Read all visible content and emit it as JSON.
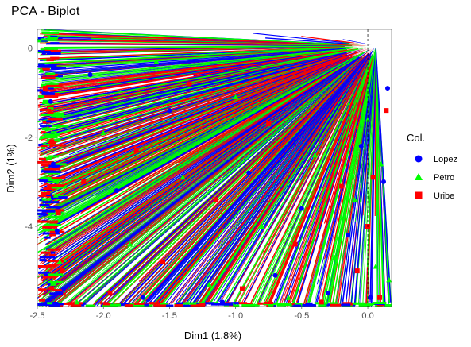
{
  "chart_data": {
    "type": "scatter",
    "title": "PCA - Biplot",
    "xlabel": "Dim1 (1.8%)",
    "ylabel": "Dim2 (1%)",
    "xlim": [
      -2.5,
      0.18
    ],
    "ylim": [
      -5.8,
      0.42
    ],
    "x_ticks": [
      -2.5,
      -2.0,
      -1.5,
      -1.0,
      -0.5,
      0.0
    ],
    "x_tick_labels": [
      "-2.5",
      "-2.0",
      "-1.5",
      "-1.0",
      "-0.5",
      "0.0"
    ],
    "y_ticks": [
      0,
      -2,
      -4
    ],
    "y_tick_labels": [
      "0",
      "-2",
      "-4"
    ],
    "grid": false,
    "origin_lines": true,
    "legend": {
      "title": "Col.",
      "placement": "right",
      "entries": [
        {
          "name": "Lopez",
          "color": "#0000ff",
          "shape": "circle"
        },
        {
          "name": "Petro",
          "color": "#00ff00",
          "shape": "triangle"
        },
        {
          "name": "Uribe",
          "color": "#ff0000",
          "shape": "square"
        }
      ]
    },
    "series": [
      {
        "name": "Lopez",
        "color": "#0000ff",
        "shape": "circle",
        "points": [
          [
            -2.45,
            -0.1
          ],
          [
            -2.4,
            -1.2
          ],
          [
            -2.38,
            -2.6
          ],
          [
            -2.35,
            -4.1
          ],
          [
            -2.3,
            -5.4
          ],
          [
            -2.1,
            -0.6
          ],
          [
            -1.9,
            -3.2
          ],
          [
            -1.7,
            -5.6
          ],
          [
            -1.5,
            -1.4
          ],
          [
            -1.3,
            -4.5
          ],
          [
            -1.1,
            -5.7
          ],
          [
            -0.9,
            -2.8
          ],
          [
            -0.7,
            -5.1
          ],
          [
            -0.5,
            -3.6
          ],
          [
            -0.3,
            -5.5
          ],
          [
            -0.15,
            -4.2
          ],
          [
            -0.05,
            -2.2
          ],
          [
            0.02,
            -5.6
          ],
          [
            0.12,
            -3.0
          ],
          [
            0.15,
            -0.9
          ]
        ]
      },
      {
        "name": "Petro",
        "color": "#00ff00",
        "shape": "triangle",
        "points": [
          [
            -2.47,
            -0.5
          ],
          [
            -2.42,
            -1.8
          ],
          [
            -2.36,
            -3.3
          ],
          [
            -2.33,
            -4.8
          ],
          [
            -2.2,
            -5.7
          ],
          [
            -2.0,
            -1.9
          ],
          [
            -1.8,
            -4.4
          ],
          [
            -1.6,
            -0.3
          ],
          [
            -1.4,
            -2.9
          ],
          [
            -1.2,
            -5.3
          ],
          [
            -1.0,
            -1.1
          ],
          [
            -0.8,
            -4.0
          ],
          [
            -0.6,
            -5.6
          ],
          [
            -0.4,
            -2.4
          ],
          [
            -0.25,
            -4.7
          ],
          [
            -0.1,
            -3.4
          ],
          [
            0.0,
            -1.6
          ],
          [
            0.06,
            -4.9
          ],
          [
            0.1,
            -2.6
          ],
          [
            0.16,
            -5.2
          ]
        ]
      },
      {
        "name": "Uribe",
        "color": "#ff0000",
        "shape": "square",
        "points": [
          [
            -2.44,
            -0.9
          ],
          [
            -2.39,
            -2.1
          ],
          [
            -2.34,
            -3.7
          ],
          [
            -2.31,
            -5.0
          ],
          [
            -2.15,
            -3.0
          ],
          [
            -1.95,
            -5.5
          ],
          [
            -1.75,
            -2.3
          ],
          [
            -1.55,
            -4.8
          ],
          [
            -1.35,
            -0.8
          ],
          [
            -1.15,
            -3.4
          ],
          [
            -0.95,
            -5.4
          ],
          [
            -0.75,
            -1.7
          ],
          [
            -0.55,
            -4.4
          ],
          [
            -0.35,
            -5.7
          ],
          [
            -0.2,
            -3.1
          ],
          [
            -0.08,
            -5.0
          ],
          [
            0.0,
            -4.0
          ],
          [
            0.04,
            -2.9
          ],
          [
            0.09,
            -5.6
          ],
          [
            0.14,
            -1.4
          ]
        ]
      }
    ]
  }
}
